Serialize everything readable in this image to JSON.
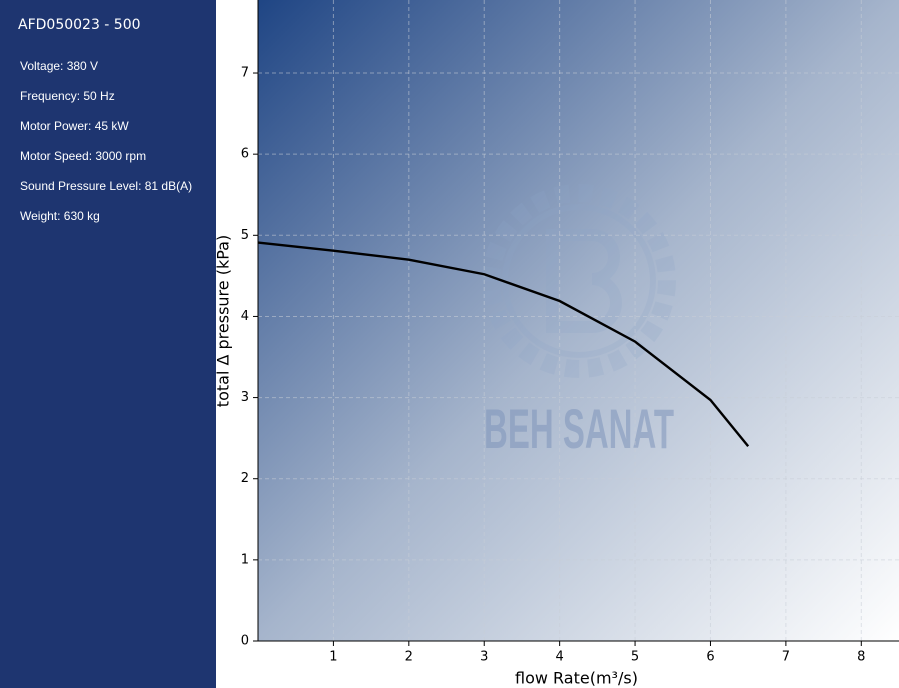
{
  "sidebar": {
    "title": "AFD050023 - 500",
    "specs": [
      "Voltage: 380 V",
      "Frequency: 50 Hz",
      "Motor Power: 45 kW",
      "Motor Speed: 3000 rpm",
      "Sound Pressure Level: 81 dB(A)",
      "Weight: 630 kg"
    ]
  },
  "chart_data": {
    "type": "line",
    "x_label": "flow Rate(m³/s)",
    "y_label": "total Δ pressure (kPa)",
    "watermark": "BEH SANAT",
    "x": [
      0,
      1,
      2,
      3,
      4,
      5,
      6,
      6.5
    ],
    "series": [
      {
        "color": "#000000",
        "values": [
          4.91,
          4.81,
          4.7,
          4.52,
          4.19,
          3.69,
          2.97,
          2.4
        ]
      }
    ],
    "xlim": [
      0,
      8.5
    ],
    "xticks": [
      1,
      2,
      3,
      4,
      5,
      6,
      7,
      8
    ],
    "ylim": [
      0,
      7.9
    ],
    "yticks": [
      0,
      1,
      2,
      3,
      4,
      5,
      6,
      7
    ],
    "grid": true
  }
}
